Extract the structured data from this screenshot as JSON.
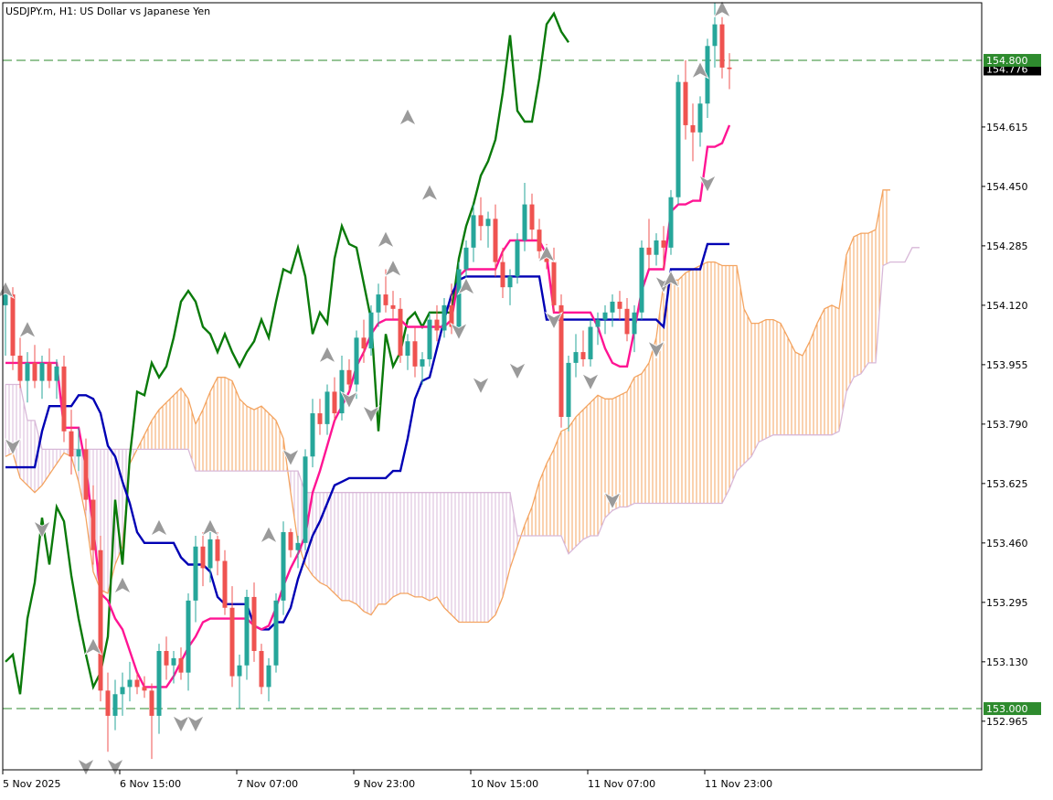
{
  "chart_data": {
    "type": "candlestick",
    "title": "USDJPY.m, H1:  US Dollar vs Japanese Yen",
    "ylim": [
      152.83,
      154.96
    ],
    "y_ticks": [
      "154.615",
      "154.450",
      "154.285",
      "154.120",
      "153.955",
      "153.790",
      "153.625",
      "153.460",
      "153.295",
      "153.130",
      "152.965"
    ],
    "x_ticks": [
      {
        "label": "5 Nov 2025",
        "index": 0
      },
      {
        "label": "6 Nov 15:00",
        "index": 16
      },
      {
        "label": "7 Nov 07:00",
        "index": 32
      },
      {
        "label": "9 Nov 23:00",
        "index": 48
      },
      {
        "label": "10 Nov 15:00",
        "index": 64
      },
      {
        "label": "11 Nov 07:00",
        "index": 80
      },
      {
        "label": "11 Nov 23:00",
        "index": 96
      }
    ],
    "horizontal_lines": [
      {
        "label": "154.800",
        "value": 154.8,
        "color": "#2e8b2e"
      },
      {
        "label": "153.000",
        "value": 153.0,
        "color": "#2e8b2e"
      }
    ],
    "current_price": {
      "label": "154.776",
      "value": 154.776
    },
    "colors": {
      "bull": "#26a69a",
      "bear": "#ef5350",
      "tenkan": "#ff1493",
      "kijun": "#0000b4",
      "chikou": "#0a7a0a",
      "span_a": "#f4a460",
      "span_b": "#d8b8d8",
      "hline": "#2e8b2e",
      "axis": "#000000"
    },
    "candles": [
      [
        154.12,
        154.16,
        153.98,
        154.15
      ],
      [
        154.15,
        154.17,
        153.94,
        153.98
      ],
      [
        153.98,
        154.03,
        153.89,
        153.91
      ],
      [
        153.91,
        153.99,
        153.85,
        153.96
      ],
      [
        153.96,
        154.01,
        153.89,
        153.91
      ],
      [
        153.91,
        153.98,
        153.86,
        153.96
      ],
      [
        153.96,
        154.0,
        153.89,
        153.91
      ],
      [
        153.91,
        153.97,
        153.86,
        153.95
      ],
      [
        153.95,
        153.98,
        153.74,
        153.77
      ],
      [
        153.77,
        153.83,
        153.65,
        153.7
      ],
      [
        153.7,
        153.78,
        153.66,
        153.72
      ],
      [
        153.72,
        153.75,
        153.55,
        153.58
      ],
      [
        153.58,
        153.62,
        153.4,
        153.44
      ],
      [
        153.44,
        153.48,
        153.02,
        153.05
      ],
      [
        153.05,
        153.1,
        152.88,
        152.98
      ],
      [
        152.98,
        153.08,
        152.94,
        153.04
      ],
      [
        153.04,
        153.1,
        152.98,
        153.06
      ],
      [
        153.06,
        153.13,
        153.02,
        153.08
      ],
      [
        153.08,
        153.1,
        153.04,
        153.06
      ],
      [
        153.06,
        153.09,
        153.03,
        153.05
      ],
      [
        153.05,
        153.07,
        152.86,
        152.98
      ],
      [
        152.98,
        153.18,
        152.93,
        153.16
      ],
      [
        153.16,
        153.2,
        153.08,
        153.12
      ],
      [
        153.12,
        153.16,
        153.07,
        153.14
      ],
      [
        153.14,
        153.17,
        153.08,
        153.1
      ],
      [
        153.1,
        153.32,
        153.05,
        153.3
      ],
      [
        153.3,
        153.48,
        153.24,
        153.45
      ],
      [
        153.45,
        153.49,
        153.34,
        153.39
      ],
      [
        153.39,
        153.49,
        153.35,
        153.47
      ],
      [
        153.47,
        153.49,
        153.37,
        153.41
      ],
      [
        153.41,
        153.44,
        153.26,
        153.28
      ],
      [
        153.28,
        153.34,
        153.06,
        153.09
      ],
      [
        153.09,
        153.15,
        153.0,
        153.12
      ],
      [
        153.12,
        153.33,
        153.08,
        153.31
      ],
      [
        153.31,
        153.35,
        153.13,
        153.16
      ],
      [
        153.16,
        153.18,
        153.04,
        153.06
      ],
      [
        153.06,
        153.14,
        153.02,
        153.12
      ],
      [
        153.12,
        153.32,
        153.1,
        153.3
      ],
      [
        153.3,
        153.52,
        153.26,
        153.49
      ],
      [
        153.49,
        153.5,
        153.42,
        153.44
      ],
      [
        153.44,
        153.48,
        153.39,
        153.46
      ],
      [
        153.46,
        153.72,
        153.44,
        153.7
      ],
      [
        153.7,
        153.86,
        153.67,
        153.82
      ],
      [
        153.82,
        153.86,
        153.76,
        153.79
      ],
      [
        153.79,
        153.9,
        153.76,
        153.88
      ],
      [
        153.88,
        153.92,
        153.8,
        153.82
      ],
      [
        153.82,
        153.98,
        153.8,
        153.94
      ],
      [
        153.94,
        153.97,
        153.88,
        153.9
      ],
      [
        153.9,
        154.05,
        153.86,
        154.03
      ],
      [
        154.03,
        154.08,
        153.96,
        154.0
      ],
      [
        154.0,
        154.12,
        153.98,
        154.1
      ],
      [
        154.1,
        154.18,
        154.06,
        154.15
      ],
      [
        154.15,
        154.22,
        154.1,
        154.12
      ],
      [
        154.12,
        154.16,
        154.08,
        154.11
      ],
      [
        154.11,
        154.14,
        153.96,
        153.98
      ],
      [
        153.98,
        154.04,
        153.94,
        154.02
      ],
      [
        154.02,
        154.06,
        153.92,
        153.95
      ],
      [
        153.95,
        153.99,
        153.9,
        153.97
      ],
      [
        153.97,
        154.1,
        153.95,
        154.08
      ],
      [
        154.08,
        154.12,
        154.02,
        154.05
      ],
      [
        154.05,
        154.14,
        154.03,
        154.12
      ],
      [
        154.12,
        154.18,
        154.04,
        154.06
      ],
      [
        154.06,
        154.24,
        154.04,
        154.22
      ],
      [
        154.22,
        154.3,
        154.17,
        154.28
      ],
      [
        154.28,
        154.4,
        154.24,
        154.37
      ],
      [
        154.37,
        154.42,
        154.3,
        154.34
      ],
      [
        154.34,
        154.38,
        154.28,
        154.36
      ],
      [
        154.36,
        154.4,
        154.2,
        154.24
      ],
      [
        154.24,
        154.28,
        154.14,
        154.17
      ],
      [
        154.17,
        154.22,
        154.12,
        154.2
      ],
      [
        154.2,
        154.32,
        154.18,
        154.3
      ],
      [
        154.3,
        154.46,
        154.27,
        154.4
      ],
      [
        154.4,
        154.43,
        154.3,
        154.33
      ],
      [
        154.33,
        154.36,
        154.25,
        154.27
      ],
      [
        154.27,
        154.29,
        154.22,
        154.24
      ],
      [
        154.24,
        154.28,
        154.1,
        154.12
      ],
      [
        154.12,
        154.15,
        153.78,
        153.81
      ],
      [
        153.81,
        153.98,
        153.77,
        153.96
      ],
      [
        153.96,
        154.04,
        153.92,
        153.99
      ],
      [
        153.99,
        154.05,
        153.95,
        153.97
      ],
      [
        153.97,
        154.08,
        153.95,
        154.06
      ],
      [
        154.06,
        154.1,
        154.01,
        154.08
      ],
      [
        154.08,
        154.12,
        154.04,
        154.1
      ],
      [
        154.1,
        154.15,
        154.06,
        154.13
      ],
      [
        154.13,
        154.16,
        154.08,
        154.11
      ],
      [
        154.11,
        154.14,
        154.02,
        154.04
      ],
      [
        154.04,
        154.12,
        153.99,
        154.1
      ],
      [
        154.1,
        154.3,
        154.08,
        154.28
      ],
      [
        154.28,
        154.36,
        154.22,
        154.26
      ],
      [
        154.26,
        154.32,
        154.23,
        154.3
      ],
      [
        154.3,
        154.34,
        154.22,
        154.28
      ],
      [
        154.28,
        154.44,
        154.26,
        154.42
      ],
      [
        154.42,
        154.76,
        154.4,
        154.74
      ],
      [
        154.74,
        154.8,
        154.58,
        154.62
      ],
      [
        154.62,
        154.68,
        154.52,
        154.6
      ],
      [
        154.6,
        154.7,
        154.56,
        154.68
      ],
      [
        154.68,
        154.86,
        154.64,
        154.84
      ],
      [
        154.84,
        154.96,
        154.78,
        154.9
      ],
      [
        154.9,
        154.92,
        154.75,
        154.78
      ],
      [
        154.78,
        154.82,
        154.72,
        154.776
      ]
    ],
    "tenkan": [
      153.96,
      153.96,
      153.96,
      153.96,
      153.96,
      153.96,
      153.96,
      153.96,
      153.78,
      153.78,
      153.78,
      153.67,
      153.5,
      153.32,
      153.3,
      153.25,
      153.22,
      153.16,
      153.1,
      153.06,
      153.06,
      153.06,
      153.06,
      153.09,
      153.13,
      153.17,
      153.2,
      153.24,
      153.25,
      153.25,
      153.25,
      153.25,
      153.25,
      153.25,
      153.23,
      153.22,
      153.23,
      153.28,
      153.34,
      153.39,
      153.43,
      153.48,
      153.6,
      153.66,
      153.73,
      153.8,
      153.84,
      153.88,
      153.95,
      153.99,
      154.04,
      154.07,
      154.08,
      154.08,
      154.08,
      154.06,
      154.06,
      154.06,
      154.06,
      154.06,
      154.06,
      154.08,
      154.2,
      154.22,
      154.22,
      154.22,
      154.22,
      154.22,
      154.27,
      154.3,
      154.3,
      154.3,
      154.3,
      154.3,
      154.26,
      154.1,
      154.1,
      154.1,
      154.1,
      154.1,
      154.1,
      154.06,
      154.0,
      153.96,
      153.95,
      153.95,
      154.05,
      154.16,
      154.22,
      154.22,
      154.22,
      154.38,
      154.4,
      154.4,
      154.41,
      154.41,
      154.56,
      154.56,
      154.57,
      154.62
    ],
    "kijun": [
      153.67,
      153.67,
      153.67,
      153.67,
      153.67,
      153.77,
      153.84,
      153.84,
      153.84,
      153.84,
      153.87,
      153.87,
      153.86,
      153.82,
      153.73,
      153.7,
      153.63,
      153.57,
      153.49,
      153.46,
      153.46,
      153.46,
      153.46,
      153.46,
      153.42,
      153.4,
      153.4,
      153.4,
      153.38,
      153.31,
      153.29,
      153.29,
      153.29,
      153.29,
      153.23,
      153.22,
      153.22,
      153.24,
      153.24,
      153.28,
      153.36,
      153.42,
      153.48,
      153.52,
      153.57,
      153.62,
      153.63,
      153.64,
      153.64,
      153.64,
      153.64,
      153.64,
      153.64,
      153.66,
      153.66,
      153.75,
      153.86,
      153.91,
      153.92,
      154.0,
      154.08,
      154.15,
      154.19,
      154.2,
      154.2,
      154.2,
      154.2,
      154.2,
      154.2,
      154.2,
      154.2,
      154.2,
      154.2,
      154.2,
      154.08,
      154.08,
      154.08,
      154.08,
      154.08,
      154.08,
      154.08,
      154.08,
      154.08,
      154.08,
      154.08,
      154.08,
      154.08,
      154.08,
      154.08,
      154.08,
      154.06,
      154.22,
      154.22,
      154.22,
      154.22,
      154.22,
      154.29,
      154.29,
      154.29,
      154.29
    ],
    "chikou": [
      153.13,
      153.15,
      153.04,
      153.25,
      153.35,
      153.53,
      153.4,
      153.56,
      153.52,
      153.37,
      153.25,
      153.15,
      153.06,
      153.1,
      153.2,
      153.58,
      153.4,
      153.7,
      153.88,
      153.87,
      153.96,
      153.92,
      153.95,
      154.03,
      154.13,
      154.16,
      154.13,
      154.06,
      154.04,
      153.99,
      154.04,
      153.99,
      153.95,
      153.99,
      154.02,
      154.08,
      154.03,
      154.13,
      154.22,
      154.21,
      154.28,
      154.2,
      154.04,
      154.1,
      154.07,
      154.25,
      154.34,
      154.29,
      154.28,
      154.18,
      154.08,
      153.77,
      154.04,
      153.95,
      153.99,
      154.08,
      154.1,
      154.06,
      154.1,
      154.1,
      154.1,
      154.1,
      154.25,
      154.34,
      154.4,
      154.48,
      154.52,
      154.58,
      154.71,
      154.87,
      154.66,
      154.63,
      154.63,
      154.75,
      154.9,
      154.93,
      154.88,
      154.85
    ],
    "span_a": [
      153.7,
      153.71,
      153.64,
      153.62,
      153.6,
      153.62,
      153.65,
      153.68,
      153.71,
      153.7,
      153.63,
      153.53,
      153.38,
      153.33,
      153.32,
      153.4,
      153.45,
      153.68,
      153.72,
      153.76,
      153.8,
      153.83,
      153.85,
      153.87,
      153.89,
      153.86,
      153.79,
      153.83,
      153.88,
      153.92,
      153.92,
      153.91,
      153.86,
      153.84,
      153.83,
      153.84,
      153.82,
      153.8,
      153.75,
      153.6,
      153.46,
      153.4,
      153.37,
      153.35,
      153.34,
      153.32,
      153.3,
      153.3,
      153.29,
      153.27,
      153.26,
      153.29,
      153.29,
      153.31,
      153.32,
      153.32,
      153.31,
      153.31,
      153.3,
      153.31,
      153.28,
      153.26,
      153.24,
      153.24,
      153.24,
      153.24,
      153.24,
      153.26,
      153.31,
      153.39,
      153.45,
      153.51,
      153.56,
      153.63,
      153.68,
      153.72,
      153.77,
      153.78,
      153.81,
      153.83,
      153.85,
      153.87,
      153.86,
      153.86,
      153.87,
      153.88,
      153.92,
      153.93,
      153.96,
      154.03,
      154.18,
      154.19,
      154.19,
      154.21,
      154.22,
      154.23,
      154.24,
      154.24,
      154.23,
      154.23,
      154.23,
      154.11,
      154.07,
      154.07,
      154.08,
      154.08,
      154.07,
      154.03,
      153.99,
      153.98,
      154.02,
      154.07,
      154.11,
      154.12,
      154.11,
      154.26,
      154.31,
      154.32,
      154.32,
      154.33,
      154.44,
      154.44
    ],
    "span_b": [
      153.9,
      153.9,
      153.9,
      153.8,
      153.8,
      153.72,
      153.72,
      153.72,
      153.72,
      153.72,
      153.72,
      153.72,
      153.72,
      153.72,
      153.72,
      153.72,
      153.72,
      153.72,
      153.72,
      153.72,
      153.72,
      153.72,
      153.72,
      153.72,
      153.72,
      153.72,
      153.66,
      153.66,
      153.66,
      153.66,
      153.66,
      153.66,
      153.66,
      153.66,
      153.66,
      153.66,
      153.66,
      153.66,
      153.66,
      153.66,
      153.66,
      153.6,
      153.6,
      153.6,
      153.6,
      153.6,
      153.6,
      153.6,
      153.6,
      153.6,
      153.6,
      153.6,
      153.6,
      153.6,
      153.6,
      153.6,
      153.6,
      153.6,
      153.6,
      153.6,
      153.6,
      153.6,
      153.6,
      153.6,
      153.6,
      153.6,
      153.6,
      153.6,
      153.6,
      153.6,
      153.48,
      153.48,
      153.48,
      153.48,
      153.48,
      153.48,
      153.48,
      153.43,
      153.45,
      153.47,
      153.48,
      153.48,
      153.53,
      153.55,
      153.56,
      153.56,
      153.57,
      153.57,
      153.57,
      153.57,
      153.57,
      153.57,
      153.57,
      153.57,
      153.57,
      153.57,
      153.57,
      153.57,
      153.57,
      153.61,
      153.66,
      153.68,
      153.7,
      153.74,
      153.75,
      153.76,
      153.76,
      153.76,
      153.76,
      153.76,
      153.76,
      153.76,
      153.76,
      153.76,
      153.77,
      153.88,
      153.92,
      153.93,
      153.96,
      153.96,
      154.23,
      154.24,
      154.24,
      154.24,
      154.28,
      154.28
    ],
    "markers": [
      {
        "index": 0,
        "side": "buy",
        "price": 154.14
      },
      {
        "index": 3,
        "side": "buy",
        "price": 154.03
      },
      {
        "index": 1,
        "side": "sell",
        "price": 153.75
      },
      {
        "index": 5,
        "side": "sell",
        "price": 153.52
      },
      {
        "index": 12,
        "side": "buy",
        "price": 153.15
      },
      {
        "index": 11,
        "side": "sell",
        "price": 152.86
      },
      {
        "index": 16,
        "side": "buy",
        "price": 153.32
      },
      {
        "index": 15,
        "side": "sell",
        "price": 152.86
      },
      {
        "index": 21,
        "side": "buy",
        "price": 153.48
      },
      {
        "index": 24,
        "side": "sell",
        "price": 152.98
      },
      {
        "index": 26,
        "side": "sell",
        "price": 152.98
      },
      {
        "index": 28,
        "side": "buy",
        "price": 153.48
      },
      {
        "index": 36,
        "side": "buy",
        "price": 153.46
      },
      {
        "index": 39,
        "side": "sell",
        "price": 153.72
      },
      {
        "index": 44,
        "side": "buy",
        "price": 153.96
      },
      {
        "index": 47,
        "side": "sell",
        "price": 153.88
      },
      {
        "index": 50,
        "side": "sell",
        "price": 153.84
      },
      {
        "index": 52,
        "side": "buy",
        "price": 154.28
      },
      {
        "index": 53,
        "side": "buy",
        "price": 154.2
      },
      {
        "index": 55,
        "side": "buy",
        "price": 154.62
      },
      {
        "index": 58,
        "side": "buy",
        "price": 154.41
      },
      {
        "index": 62,
        "side": "sell",
        "price": 154.07
      },
      {
        "index": 63,
        "side": "buy",
        "price": 154.15
      },
      {
        "index": 65,
        "side": "sell",
        "price": 153.92
      },
      {
        "index": 70,
        "side": "sell",
        "price": 153.96
      },
      {
        "index": 74,
        "side": "buy",
        "price": 154.24
      },
      {
        "index": 75,
        "side": "sell",
        "price": 154.1
      },
      {
        "index": 80,
        "side": "sell",
        "price": 153.93
      },
      {
        "index": 83,
        "side": "sell",
        "price": 153.6
      },
      {
        "index": 89,
        "side": "sell",
        "price": 154.02
      },
      {
        "index": 90,
        "side": "sell",
        "price": 154.2
      },
      {
        "index": 91,
        "side": "buy",
        "price": 154.17
      },
      {
        "index": 95,
        "side": "buy",
        "price": 154.75
      },
      {
        "index": 96,
        "side": "sell",
        "price": 154.48
      },
      {
        "index": 98,
        "side": "buy",
        "price": 154.92
      }
    ]
  }
}
